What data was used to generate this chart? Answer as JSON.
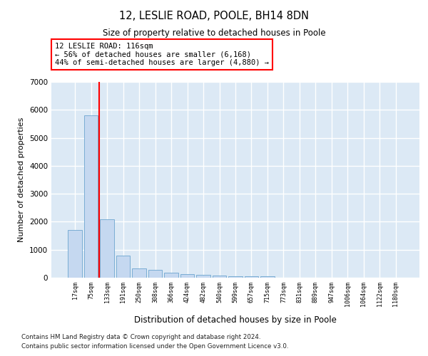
{
  "title_line1": "12, LESLIE ROAD, POOLE, BH14 8DN",
  "title_line2": "Size of property relative to detached houses in Poole",
  "xlabel": "Distribution of detached houses by size in Poole",
  "ylabel": "Number of detached properties",
  "bar_labels": [
    "17sqm",
    "75sqm",
    "133sqm",
    "191sqm",
    "250sqm",
    "308sqm",
    "366sqm",
    "424sqm",
    "482sqm",
    "540sqm",
    "599sqm",
    "657sqm",
    "715sqm",
    "773sqm",
    "831sqm",
    "889sqm",
    "947sqm",
    "1006sqm",
    "1064sqm",
    "1122sqm",
    "1180sqm"
  ],
  "bar_values": [
    1700,
    5800,
    2100,
    800,
    320,
    270,
    170,
    120,
    90,
    70,
    55,
    45,
    40,
    0,
    0,
    0,
    0,
    0,
    0,
    0,
    0
  ],
  "bar_color": "#c5d8f0",
  "bar_edge_color": "#7aadd4",
  "ylim": [
    0,
    7000
  ],
  "yticks": [
    0,
    1000,
    2000,
    3000,
    4000,
    5000,
    6000,
    7000
  ],
  "annotation_line1": "12 LESLIE ROAD: 116sqm",
  "annotation_line2": "← 56% of detached houses are smaller (6,168)",
  "annotation_line3": "44% of semi-detached houses are larger (4,880) →",
  "red_line_x": 1.5,
  "background_color": "#dce9f5",
  "grid_color": "#ffffff",
  "footnote1": "Contains HM Land Registry data © Crown copyright and database right 2024.",
  "footnote2": "Contains public sector information licensed under the Open Government Licence v3.0."
}
